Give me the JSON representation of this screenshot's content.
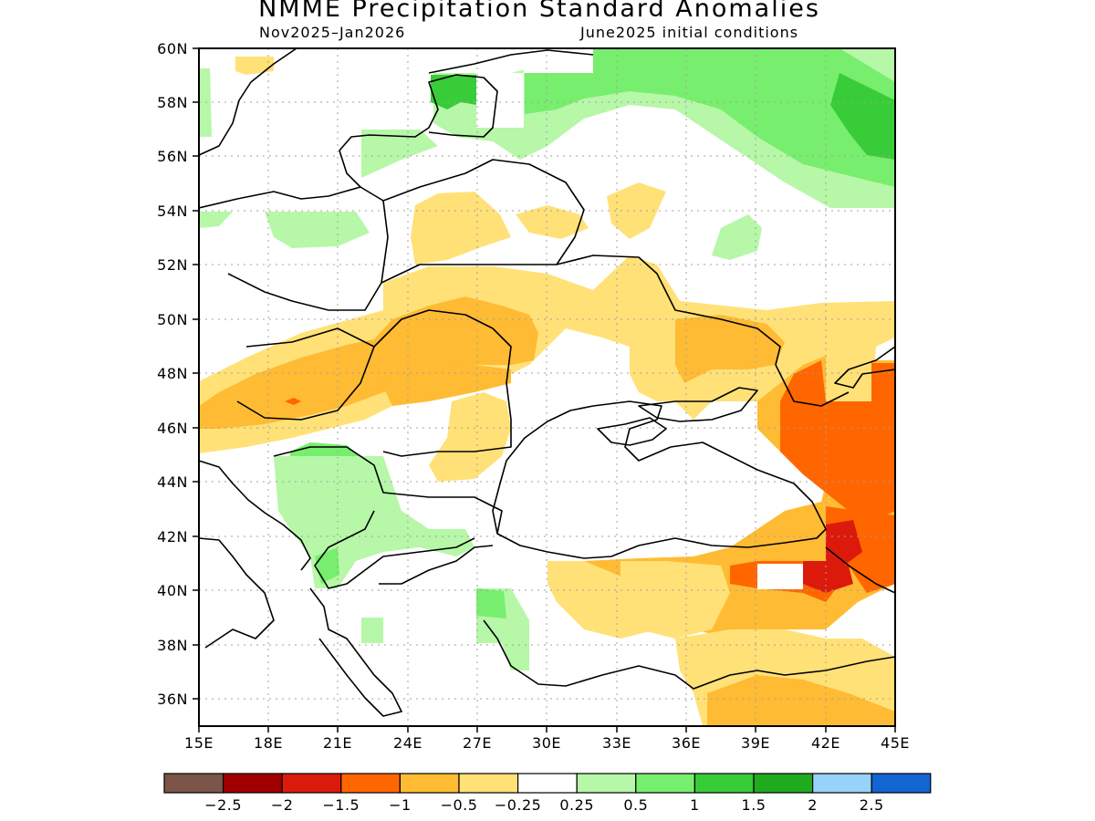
{
  "title": "NMME Precipitation Standard Anomalies",
  "subtitle_left": "Nov2025–Jan2026",
  "subtitle_right": "June2025 initial conditions",
  "lat_labels": [
    "60N",
    "58N",
    "56N",
    "54N",
    "52N",
    "50N",
    "48N",
    "46N",
    "44N",
    "42N",
    "40N",
    "38N",
    "36N"
  ],
  "lon_labels": [
    "15E",
    "18E",
    "21E",
    "24E",
    "27E",
    "30E",
    "33E",
    "36E",
    "39E",
    "42E",
    "45E"
  ],
  "colorbar": {
    "colors": [
      "#7a5548",
      "#a00000",
      "#dc1a0c",
      "#ff6600",
      "#ffbb33",
      "#ffe177",
      "#ffffff",
      "#b6f7a8",
      "#77ee6d",
      "#39cc39",
      "#20aa20",
      "#96d2fa",
      "#1464d2"
    ],
    "labels": [
      "−2.5",
      "−2",
      "−1.5",
      "−1",
      "−0.5",
      "−0.25",
      "0.25",
      "0.5",
      "1",
      "1.5",
      "2",
      "2.5"
    ]
  },
  "map": {
    "region": "Eastern Europe / Black Sea",
    "lon_range": [
      15,
      45
    ],
    "lat_range": [
      35,
      60
    ]
  }
}
